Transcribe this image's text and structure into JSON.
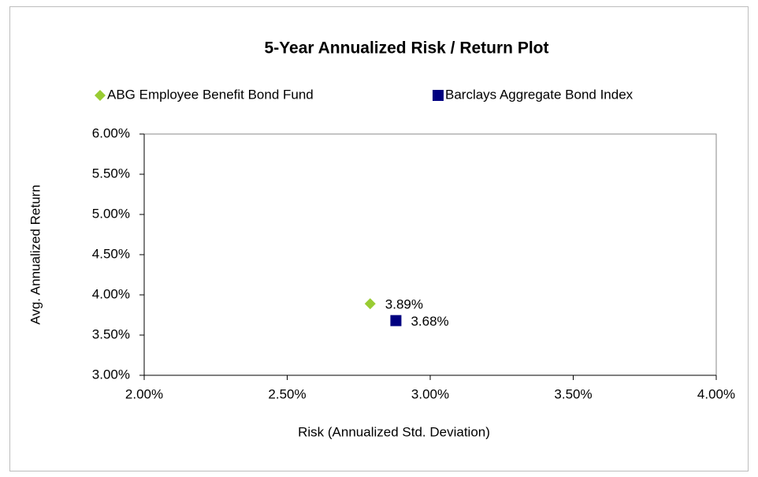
{
  "chart_data": {
    "type": "scatter",
    "title": "5-Year Annualized Risk / Return Plot",
    "xlabel": "Risk (Annualized Std. Deviation)",
    "ylabel": "Avg. Annualized Return",
    "xlim": [
      2,
      4
    ],
    "ylim": [
      3,
      6
    ],
    "xticks": [
      {
        "value": 2,
        "label": "2.00%"
      },
      {
        "value": 2.5,
        "label": "2.50%"
      },
      {
        "value": 3,
        "label": "3.00%"
      },
      {
        "value": 3.5,
        "label": "3.50%"
      },
      {
        "value": 4,
        "label": "4.00%"
      }
    ],
    "yticks": [
      {
        "value": 3,
        "label": "3.00%"
      },
      {
        "value": 3.5,
        "label": "3.50%"
      },
      {
        "value": 4,
        "label": "4.00%"
      },
      {
        "value": 4.5,
        "label": "4.50%"
      },
      {
        "value": 5,
        "label": "5.00%"
      },
      {
        "value": 5.5,
        "label": "5.50%"
      },
      {
        "value": 6,
        "label": "6.00%"
      }
    ],
    "grid": false,
    "legend": "top",
    "series": [
      {
        "name": "ABG Employee Benefit Bond Fund",
        "color": "#99cc33",
        "marker": "diamond",
        "x": [
          2.79
        ],
        "values": [
          3.89
        ],
        "value_labels": [
          "3.89%"
        ]
      },
      {
        "name": "Barclays Aggregate Bond Index",
        "color": "#000080",
        "marker": "square",
        "x": [
          2.88
        ],
        "values": [
          3.68
        ],
        "value_labels": [
          "3.68%"
        ]
      }
    ]
  }
}
